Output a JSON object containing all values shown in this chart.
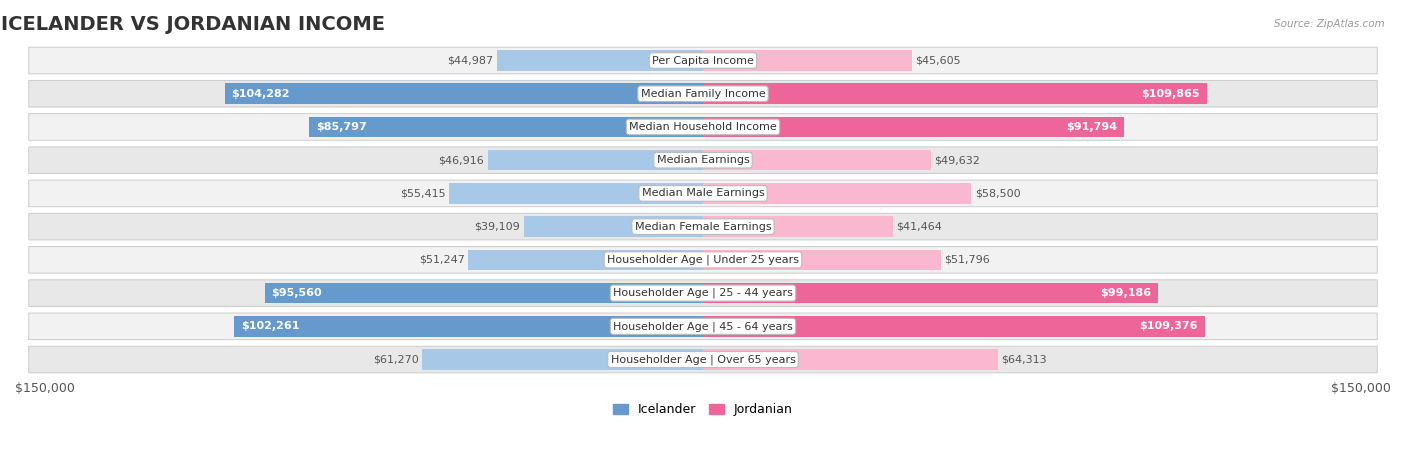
{
  "title": "Icelander vs Jordanian Income",
  "source": "Source: ZipAtlas.com",
  "categories": [
    "Per Capita Income",
    "Median Family Income",
    "Median Household Income",
    "Median Earnings",
    "Median Male Earnings",
    "Median Female Earnings",
    "Householder Age | Under 25 years",
    "Householder Age | 25 - 44 years",
    "Householder Age | 45 - 64 years",
    "Householder Age | Over 65 years"
  ],
  "icelander_values": [
    44987,
    104282,
    85797,
    46916,
    55415,
    39109,
    51247,
    95560,
    102261,
    61270
  ],
  "jordanian_values": [
    45605,
    109865,
    91794,
    49632,
    58500,
    41464,
    51796,
    99186,
    109376,
    64313
  ],
  "icelander_labels": [
    "$44,987",
    "$104,282",
    "$85,797",
    "$46,916",
    "$55,415",
    "$39,109",
    "$51,247",
    "$95,560",
    "$102,261",
    "$61,270"
  ],
  "jordanian_labels": [
    "$45,605",
    "$109,865",
    "$91,794",
    "$49,632",
    "$58,500",
    "$41,464",
    "$51,796",
    "$99,186",
    "$109,376",
    "$64,313"
  ],
  "max_value": 150000,
  "icelander_color_light": "#a8c8e8",
  "icelander_color_dark": "#6699cc",
  "jordanian_color_light": "#f9b8d0",
  "jordanian_color_dark": "#ee6699",
  "bar_height": 0.62,
  "row_bg": "#f0f0f0",
  "row_border": "#d8d8d8",
  "label_threshold": 75000,
  "axis_label_left": "$150,000",
  "axis_label_right": "$150,000",
  "legend_icelander": "Icelander",
  "legend_jordanian": "Jordanian",
  "title_fontsize": 14,
  "label_fontsize": 8,
  "cat_fontsize": 8
}
